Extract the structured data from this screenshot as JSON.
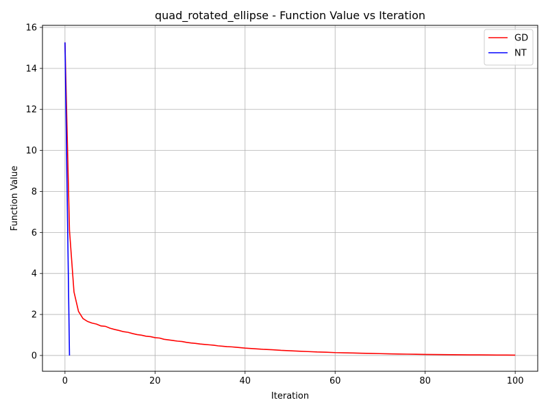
{
  "chart_data": {
    "type": "line",
    "title": "quad_rotated_ellipse - Function Value vs Iteration",
    "xlabel": "Iteration",
    "ylabel": "Function Value",
    "xlim": [
      -5,
      105
    ],
    "ylim": [
      -0.77,
      16.1
    ],
    "xticks": [
      0,
      20,
      40,
      60,
      80,
      100
    ],
    "yticks": [
      0,
      2,
      4,
      6,
      8,
      10,
      12,
      14,
      16
    ],
    "grid": true,
    "legend_position": "top-right",
    "series": [
      {
        "name": "GD",
        "color": "#ff0000",
        "x": [
          0,
          1,
          2,
          3,
          4,
          5,
          6,
          7,
          8,
          9,
          10,
          11,
          12,
          13,
          14,
          15,
          16,
          17,
          18,
          19,
          20,
          21,
          22,
          23,
          24,
          25,
          26,
          27,
          28,
          29,
          30,
          31,
          32,
          33,
          34,
          35,
          36,
          37,
          38,
          39,
          40,
          42,
          44,
          46,
          48,
          50,
          52,
          54,
          56,
          58,
          60,
          62,
          64,
          66,
          68,
          70,
          72,
          74,
          76,
          78,
          80,
          82,
          84,
          86,
          88,
          90,
          92,
          94,
          96,
          98,
          100
        ],
        "y": [
          15.27,
          6.1,
          3.1,
          2.15,
          1.8,
          1.66,
          1.58,
          1.53,
          1.44,
          1.42,
          1.33,
          1.27,
          1.22,
          1.16,
          1.13,
          1.07,
          1.02,
          0.99,
          0.94,
          0.92,
          0.87,
          0.85,
          0.79,
          0.76,
          0.73,
          0.7,
          0.68,
          0.64,
          0.61,
          0.59,
          0.56,
          0.54,
          0.52,
          0.5,
          0.47,
          0.45,
          0.43,
          0.42,
          0.4,
          0.38,
          0.36,
          0.33,
          0.3,
          0.28,
          0.25,
          0.23,
          0.21,
          0.19,
          0.17,
          0.16,
          0.14,
          0.13,
          0.12,
          0.11,
          0.1,
          0.09,
          0.08,
          0.07,
          0.065,
          0.058,
          0.052,
          0.047,
          0.042,
          0.038,
          0.034,
          0.031,
          0.028,
          0.025,
          0.022,
          0.02,
          0.018
        ]
      },
      {
        "name": "NT",
        "color": "#0000ff",
        "x": [
          0,
          1
        ],
        "y": [
          15.27,
          0.0
        ]
      }
    ]
  }
}
